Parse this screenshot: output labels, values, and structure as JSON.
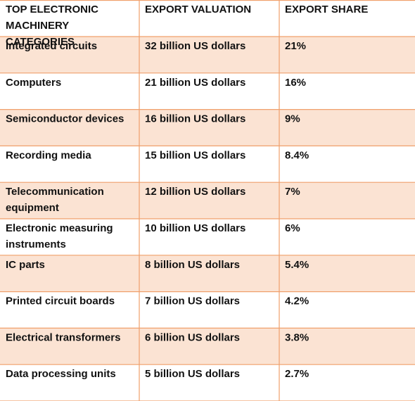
{
  "colors": {
    "band": "#fbe3d3",
    "plain": "#ffffff",
    "rule": "#f0a06c",
    "text": "#111111"
  },
  "chart_data": {
    "type": "table",
    "columns": [
      "TOP ELECTRONIC MACHINERY CATEGORIES",
      "EXPORT VALUATION",
      "EXPORT SHARE"
    ],
    "rows": [
      [
        "Integrated circuits",
        "32 billion US dollars",
        "21%"
      ],
      [
        "Computers",
        "21 billion US dollars",
        "16%"
      ],
      [
        "Semiconductor devices",
        "16 billion US dollars",
        "9%"
      ],
      [
        "Recording media",
        "15 billion US dollars",
        "8.4%"
      ],
      [
        "Telecommunication equipment",
        "12 billion US dollars",
        "7%"
      ],
      [
        "Electronic measuring instruments",
        "10 billion US dollars",
        "6%"
      ],
      [
        "IC parts",
        "8 billion US dollars",
        "5.4%"
      ],
      [
        "Printed circuit boards",
        "7 billion US dollars",
        "4.2%"
      ],
      [
        "Electrical transformers",
        "6 billion US dollars",
        "3.8%"
      ],
      [
        "Data processing units",
        "5 billion US dollars",
        "2.7%"
      ]
    ]
  }
}
